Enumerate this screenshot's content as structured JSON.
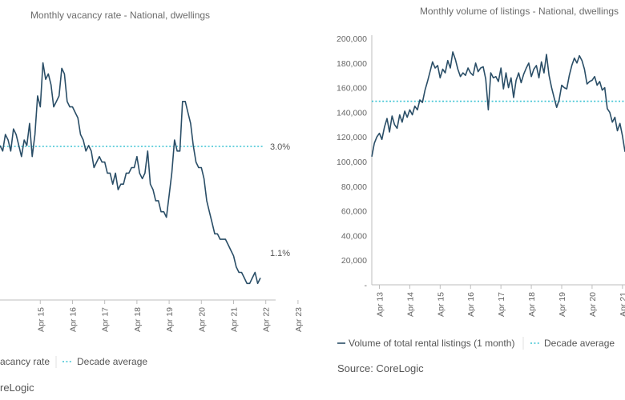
{
  "colors": {
    "series": "#2a4e67",
    "decade_average": "#3cc4d4"
  },
  "left_chart": {
    "title": "Monthly vacancy rate - National, dwellings",
    "legend": {
      "series_label": "acancy rate",
      "average_label": "Decade average"
    },
    "source_text": "reLogic",
    "annotations": {
      "average": "3.0%",
      "latest": "1.1%"
    }
  },
  "right_chart": {
    "title": "Monthly volume of listings - National, dwellings",
    "legend": {
      "series_label": "Volume of total rental listings (1 month)",
      "average_label": "Decade average"
    },
    "source_text": "Source: CoreLogic"
  },
  "chart_data": [
    {
      "type": "line",
      "title": "Monthly vacancy rate - National, dwellings",
      "xlabel": "",
      "ylabel": "",
      "x_ticks": [
        "Apr 15",
        "Apr 16",
        "Apr 17",
        "Apr 18",
        "Apr 19",
        "Apr 20",
        "Apr 21",
        "Apr 22",
        "Apr 23"
      ],
      "x_start": "2014-01",
      "x_end": "2023-04",
      "ylim": [
        0.7,
        5.5
      ],
      "decade_average": 3.0,
      "series": [
        {
          "name": "acancy rate",
          "values": [
            3.5,
            3.4,
            3.7,
            3.6,
            3.4,
            3.8,
            3.7,
            3.5,
            3.3,
            3.6,
            3.5,
            3.9,
            3.3,
            3.7,
            4.4,
            4.2,
            5.0,
            4.7,
            4.8,
            4.6,
            4.2,
            4.3,
            4.4,
            4.9,
            4.8,
            4.3,
            4.2,
            4.2,
            4.1,
            4.0,
            3.7,
            3.6,
            3.4,
            3.5,
            3.4,
            3.1,
            3.2,
            3.3,
            3.2,
            3.2,
            3.0,
            3.0,
            2.8,
            3.0,
            2.7,
            2.8,
            2.8,
            3.0,
            3.0,
            3.1,
            3.1,
            3.3,
            3.0,
            2.9,
            3.0,
            3.4,
            2.8,
            2.7,
            2.5,
            2.5,
            2.3,
            2.3,
            2.2,
            2.6,
            3.0,
            3.6,
            3.4,
            3.4,
            4.3,
            4.3,
            4.1,
            3.9,
            3.5,
            3.2,
            3.1,
            3.1,
            2.9,
            2.5,
            2.3,
            2.1,
            1.9,
            1.9,
            1.8,
            1.8,
            1.8,
            1.7,
            1.6,
            1.5,
            1.3,
            1.2,
            1.2,
            1.1,
            1.0,
            1.0,
            1.1,
            1.2,
            1.0,
            1.1
          ]
        }
      ]
    },
    {
      "type": "line",
      "title": "Monthly volume of listings - National, dwellings",
      "xlabel": "",
      "ylabel": "",
      "x_ticks": [
        "Apr 13",
        "Apr 14",
        "Apr 15",
        "Apr 16",
        "Apr 17",
        "Apr 18",
        "Apr 19",
        "Apr 20",
        "Apr 21",
        "Apr 22"
      ],
      "y_ticks": [
        0,
        20000,
        40000,
        60000,
        80000,
        100000,
        120000,
        140000,
        160000,
        180000,
        200000
      ],
      "y_tick_labels": [
        "-",
        "20,000",
        "40,000",
        "60,000",
        "80,000",
        "100,000",
        "120,000",
        "140,000",
        "160,000",
        "180,000",
        "200,000"
      ],
      "x_start": "2013-01",
      "x_end": "2022-04",
      "ylim": [
        0,
        200000
      ],
      "decade_average": 149000,
      "series": [
        {
          "name": "Volume of total rental listings (1 month)",
          "values": [
            104000,
            115000,
            120000,
            123000,
            118000,
            128000,
            135000,
            124000,
            137000,
            130000,
            127000,
            138000,
            132000,
            141000,
            136000,
            142000,
            138000,
            145000,
            142000,
            150000,
            148000,
            158000,
            165000,
            173000,
            181000,
            176000,
            178000,
            168000,
            175000,
            172000,
            182000,
            176000,
            189000,
            183000,
            175000,
            169000,
            172000,
            170000,
            176000,
            172000,
            170000,
            180000,
            173000,
            176000,
            177000,
            167000,
            142000,
            172000,
            168000,
            169000,
            165000,
            176000,
            159000,
            172000,
            160000,
            168000,
            152000,
            166000,
            172000,
            164000,
            171000,
            176000,
            180000,
            169000,
            175000,
            178000,
            168000,
            181000,
            172000,
            187000,
            170000,
            160000,
            152000,
            144000,
            150000,
            162000,
            160000,
            159000,
            170000,
            178000,
            184000,
            180000,
            186000,
            182000,
            175000,
            163000,
            165000,
            166000,
            169000,
            162000,
            165000,
            158000,
            160000,
            143000,
            140000,
            132000,
            136000,
            125000,
            131000,
            121000,
            108000
          ]
        }
      ]
    }
  ]
}
